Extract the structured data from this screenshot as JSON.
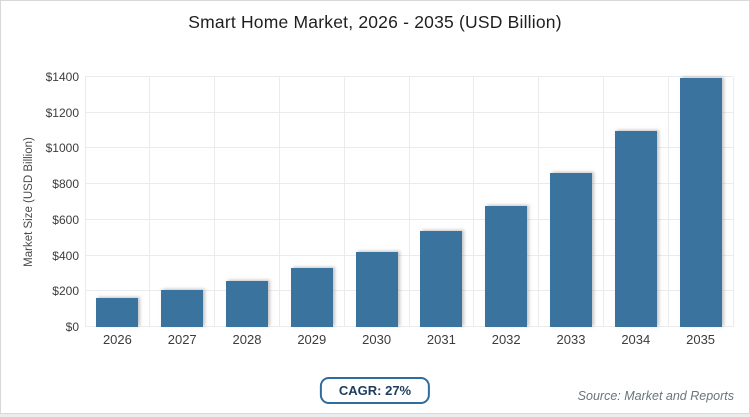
{
  "chart_data": {
    "type": "bar",
    "title": "Smart Home Market, 2026 - 2035 (USD Billion)",
    "xlabel": "",
    "ylabel": "Market Size (USD Billion)",
    "categories": [
      "2026",
      "2027",
      "2028",
      "2029",
      "2030",
      "2031",
      "2032",
      "2033",
      "2034",
      "2035"
    ],
    "values": [
      160,
      205,
      260,
      330,
      420,
      535,
      680,
      860,
      1100,
      1395
    ],
    "ylim": [
      0,
      1400
    ],
    "ytick_step": 200,
    "ytick_labels": [
      "$0",
      "$200",
      "$400",
      "$600",
      "$800",
      "$1000",
      "$1200",
      "$1400"
    ],
    "grid": true,
    "legend": "none",
    "bar_color": "#3a739d"
  },
  "footer": {
    "cagr_label": "CAGR: 27%",
    "source": "Source: Market and Reports"
  },
  "colors": {
    "bar": "#3a739d",
    "grid": "#ebebeb",
    "badge_border": "#2f6c9f",
    "badge_text": "#1d3c5e",
    "card_border": "#d8d8d8",
    "page_background": "#e9edf0",
    "title_text": "#1f1f1f",
    "axis_text": "#3d3d3d",
    "source_text": "#68757d"
  }
}
